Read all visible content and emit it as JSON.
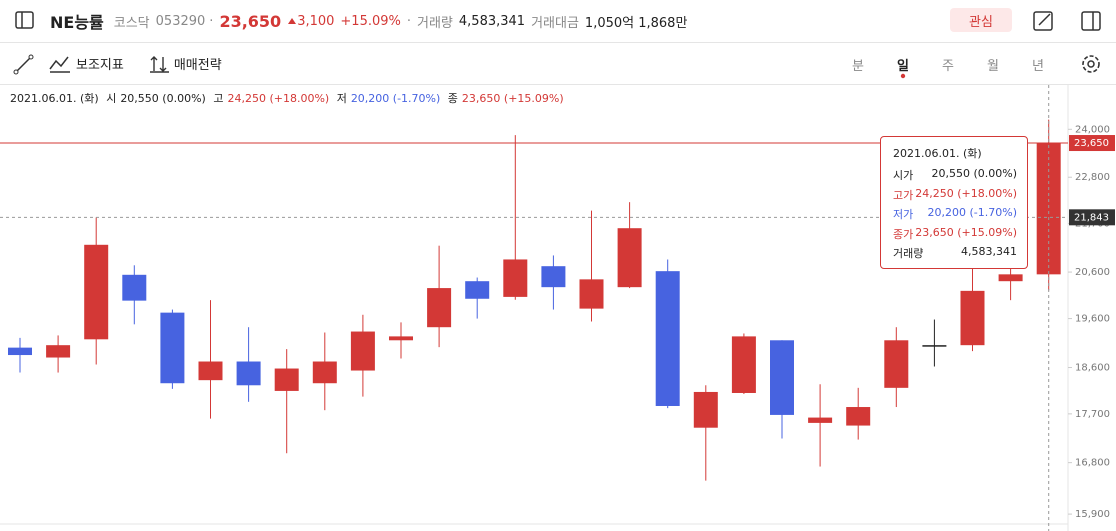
{
  "header": {
    "name": "NE능률",
    "market": "코스닥",
    "code": "053290",
    "separator": "·",
    "price": "23,650",
    "change": "3,100",
    "change_pct": "+15.09%",
    "volume_label": "거래량",
    "volume": "4,583,341",
    "amount_label": "거래대금",
    "amount": "1,050억 1,868만",
    "watch_button": "관심"
  },
  "toolbar": {
    "indicators": "보조지표",
    "strategy": "매매전략",
    "periods": [
      "분",
      "일",
      "주",
      "월",
      "년"
    ]
  },
  "ohlc_bar": {
    "date": "2021.06.01. (화)",
    "items": [
      {
        "label": "시",
        "value": "20,550 (0.00%)"
      },
      {
        "label": "고",
        "value": "24,250 (+18.00%)"
      },
      {
        "label": "저",
        "value": "20,200 (-1.70%)"
      },
      {
        "label": "종",
        "value": "23,650 (+15.09%)"
      }
    ]
  },
  "tooltip": {
    "date": "2021.06.01. (화)",
    "rows": [
      {
        "label": "시가",
        "value": "20,550 (0.00%)"
      },
      {
        "label": "고가",
        "value": "24,250 (+18.00%)"
      },
      {
        "label": "저가",
        "value": "20,200 (-1.70%)"
      },
      {
        "label": "종가",
        "value": "23,650 (+15.09%)"
      },
      {
        "label": "거래량",
        "value": "4,583,341"
      }
    ]
  },
  "chart_data": {
    "type": "candlestick",
    "log_scale": true,
    "up_color": "#d33836",
    "down_color": "#4763e0",
    "flat_color": "#222222",
    "open": [
      19000,
      18800,
      19170,
      20540,
      19725,
      18350,
      18720,
      18140,
      18290,
      18540,
      19150,
      19420,
      20400,
      20060,
      20730,
      19810,
      20270,
      20620,
      17440,
      18100,
      19150,
      17530,
      17480,
      18200,
      19050,
      19050,
      20400,
      20550
    ],
    "high": [
      19200,
      19250,
      21840,
      20750,
      19790,
      19990,
      19420,
      18970,
      19310,
      19680,
      19520,
      21190,
      20480,
      23850,
      20970,
      22000,
      22200,
      20880,
      18250,
      19290,
      19150,
      18270,
      18200,
      19420,
      19580,
      20810,
      20730,
      24250
    ],
    "low": [
      18500,
      18500,
      18660,
      19480,
      18180,
      17610,
      17930,
      16970,
      17770,
      18030,
      18780,
      19010,
      19600,
      20000,
      19790,
      19540,
      20250,
      17810,
      16480,
      18080,
      17240,
      16730,
      17220,
      17830,
      18620,
      18930,
      19990,
      20200
    ],
    "close": [
      18850,
      19050,
      21210,
      19980,
      18290,
      18720,
      18250,
      18580,
      18720,
      19330,
      19230,
      20250,
      20020,
      20880,
      20270,
      20440,
      21590,
      17850,
      18120,
      19230,
      17680,
      17630,
      17830,
      19150,
      19050,
      20190,
      20550,
      23650
    ],
    "ylim": [
      15800,
      25300
    ],
    "yticks": [
      {
        "value": 15900,
        "label": "15,900"
      },
      {
        "value": 16800,
        "label": "16,800"
      },
      {
        "value": 17700,
        "label": "17,700"
      },
      {
        "value": 18600,
        "label": "18,600"
      },
      {
        "value": 19600,
        "label": "19,600"
      },
      {
        "value": 20600,
        "label": "20,600"
      },
      {
        "value": 21700,
        "label": "21,700"
      },
      {
        "value": 22800,
        "label": "22,800"
      },
      {
        "value": 24000,
        "label": "24,000"
      }
    ],
    "last_price": {
      "value": 23650,
      "label": "23,650"
    },
    "crosshair": {
      "value": 21843,
      "label": "21,843"
    }
  }
}
